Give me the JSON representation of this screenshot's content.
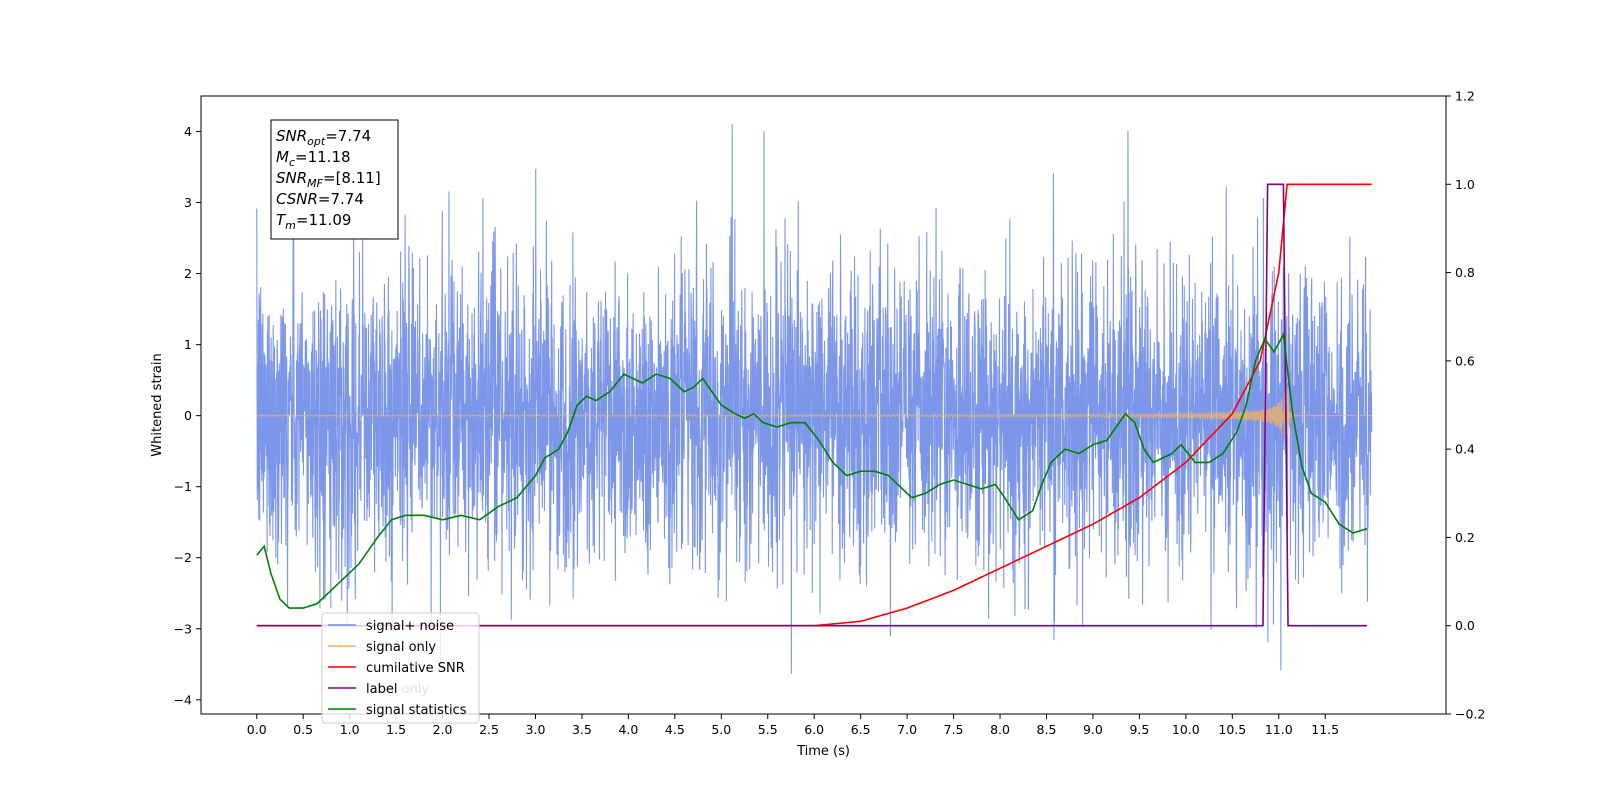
{
  "chart_data": {
    "type": "line",
    "xlabel": "Time (s)",
    "ylabel_left": "Whitened strain",
    "ylabel_right": "",
    "xlim": [
      -0.6,
      12.8
    ],
    "ylim_left": [
      -4.2,
      4.5
    ],
    "ylim_right": [
      -0.2,
      1.2
    ],
    "x_ticks": [
      "0.0",
      "0.5",
      "1.0",
      "1.5",
      "2.0",
      "2.5",
      "3.0",
      "3.5",
      "4.0",
      "4.5",
      "5.0",
      "5.5",
      "6.0",
      "6.5",
      "7.0",
      "7.5",
      "8.0",
      "8.5",
      "9.0",
      "9.5",
      "10.0",
      "10.5",
      "11.0",
      "11.5"
    ],
    "y_ticks_left": [
      "4",
      "3",
      "2",
      "1",
      "0",
      "−1",
      "−2",
      "−3",
      "−4"
    ],
    "y_ticks_right": [
      "1.2",
      "1.0",
      "0.8",
      "0.6",
      "0.4",
      "0.2",
      "0.0",
      "−0.2"
    ],
    "grid": false,
    "legend_position": "lower-left",
    "annotation": {
      "lines": [
        {
          "base": "SNR",
          "sub": "opt",
          "value": "=7.74"
        },
        {
          "base": "M",
          "sub": "c",
          "value": "=11.18"
        },
        {
          "base": "SNR",
          "sub": "MF",
          "value": "=[8.11]"
        },
        {
          "base": "CSNR",
          "sub": "",
          "value": "=7.74"
        },
        {
          "base": "T",
          "sub": "m",
          "value": "=11.09"
        }
      ]
    },
    "series": [
      {
        "name": "signal+ noise",
        "axis": "left",
        "color": "#7590e8",
        "kind": "noise",
        "x_range": [
          0.0,
          12.0
        ],
        "approx_std": 1.0,
        "approx_range": [
          -3.7,
          4.1
        ]
      },
      {
        "name": "signal only",
        "axis": "left",
        "color": "#f5b25f",
        "kind": "chirp",
        "x_range": [
          0.0,
          12.0
        ],
        "merger_time": 11.09,
        "peak_amplitude": 0.6
      },
      {
        "name": "cumilative SNR",
        "axis": "right",
        "color": "#ff0000",
        "x": [
          0.0,
          6.0,
          6.5,
          7.0,
          7.5,
          8.0,
          8.5,
          9.0,
          9.5,
          10.0,
          10.5,
          10.8,
          11.0,
          11.09,
          11.1,
          12.0
        ],
        "y": [
          0.0,
          0.0,
          0.01,
          0.04,
          0.08,
          0.13,
          0.18,
          0.23,
          0.29,
          0.37,
          0.48,
          0.6,
          0.8,
          1.0,
          1.0,
          1.0
        ]
      },
      {
        "name": "label",
        "axis": "right",
        "color": "#800080",
        "x": [
          0.0,
          10.83,
          10.88,
          11.05,
          11.1,
          11.95
        ],
        "y": [
          0.0,
          0.0,
          1.0,
          1.0,
          0.0,
          0.0
        ]
      },
      {
        "name": "signal statistics",
        "axis": "right",
        "color": "#008000",
        "x": [
          0.0,
          0.08,
          0.15,
          0.25,
          0.35,
          0.5,
          0.65,
          0.8,
          0.95,
          1.1,
          1.3,
          1.45,
          1.6,
          1.8,
          2.0,
          2.2,
          2.4,
          2.6,
          2.8,
          3.0,
          3.1,
          3.25,
          3.35,
          3.45,
          3.55,
          3.65,
          3.8,
          3.95,
          4.05,
          4.15,
          4.3,
          4.45,
          4.6,
          4.7,
          4.8,
          4.9,
          5.0,
          5.15,
          5.25,
          5.35,
          5.45,
          5.6,
          5.75,
          5.9,
          6.05,
          6.2,
          6.35,
          6.5,
          6.65,
          6.8,
          6.95,
          7.05,
          7.2,
          7.35,
          7.5,
          7.65,
          7.8,
          7.95,
          8.05,
          8.2,
          8.35,
          8.45,
          8.55,
          8.7,
          8.85,
          9.0,
          9.15,
          9.25,
          9.35,
          9.45,
          9.55,
          9.65,
          9.75,
          9.85,
          9.95,
          10.1,
          10.25,
          10.4,
          10.55,
          10.65,
          10.75,
          10.85,
          10.95,
          11.05,
          11.15,
          11.25,
          11.35,
          11.5,
          11.65,
          11.8,
          11.95
        ],
        "y": [
          0.16,
          0.18,
          0.12,
          0.06,
          0.04,
          0.04,
          0.05,
          0.08,
          0.11,
          0.14,
          0.2,
          0.24,
          0.25,
          0.25,
          0.24,
          0.25,
          0.24,
          0.27,
          0.29,
          0.34,
          0.38,
          0.4,
          0.44,
          0.5,
          0.52,
          0.51,
          0.53,
          0.57,
          0.56,
          0.55,
          0.57,
          0.56,
          0.53,
          0.54,
          0.56,
          0.53,
          0.5,
          0.48,
          0.47,
          0.48,
          0.46,
          0.45,
          0.46,
          0.46,
          0.42,
          0.37,
          0.34,
          0.35,
          0.35,
          0.34,
          0.31,
          0.29,
          0.3,
          0.32,
          0.33,
          0.32,
          0.31,
          0.32,
          0.29,
          0.24,
          0.26,
          0.32,
          0.37,
          0.4,
          0.39,
          0.41,
          0.42,
          0.45,
          0.48,
          0.46,
          0.4,
          0.37,
          0.38,
          0.39,
          0.41,
          0.37,
          0.37,
          0.39,
          0.44,
          0.5,
          0.6,
          0.65,
          0.62,
          0.66,
          0.48,
          0.36,
          0.3,
          0.28,
          0.23,
          0.21,
          0.22
        ]
      }
    ]
  },
  "legend": {
    "items": [
      {
        "label": "signal+ noise",
        "color": "#7590e8"
      },
      {
        "label": "signal only",
        "color": "#f5b25f"
      },
      {
        "label": "cumilative SNR",
        "color": "#ff0000"
      },
      {
        "label": "label",
        "color": "#800080"
      },
      {
        "label": "signal statistics",
        "color": "#008000"
      }
    ],
    "hidden_label": "label only"
  }
}
